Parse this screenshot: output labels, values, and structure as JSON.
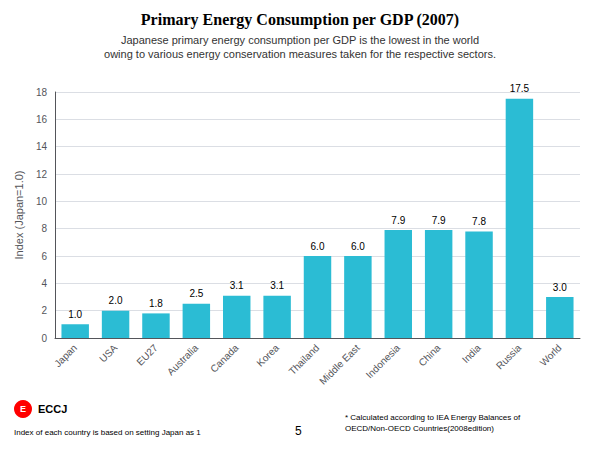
{
  "chart_data": {
    "type": "bar",
    "title": "Primary Energy Consumption per GDP (2007)",
    "subtitle": "Japanese primary energy consumption per GDP is the lowest in the world\nowing to various energy conservation measures taken for the respective sectors.",
    "ylabel": "Index (Japan=1.0)",
    "categories": [
      "Japan",
      "USA",
      "EU27",
      "Australia",
      "Canada",
      "Korea",
      "Thailand",
      "Middle East",
      "Indonesia",
      "China",
      "India",
      "Russia",
      "World"
    ],
    "values": [
      1.0,
      2.0,
      1.8,
      2.5,
      3.1,
      3.1,
      6.0,
      6.0,
      7.9,
      7.9,
      7.8,
      17.5,
      3.0
    ],
    "value_labels": [
      "1.0",
      "2.0",
      "1.8",
      "2.5",
      "3.1",
      "3.1",
      "6.0",
      "6.0",
      "7.9",
      "7.9",
      "7.8",
      "17.5",
      "3.0"
    ],
    "color": "#2bbcd4",
    "ylim": [
      0,
      18
    ],
    "yticks": [
      0,
      2,
      4,
      6,
      8,
      10,
      12,
      14,
      16,
      18
    ],
    "grid": true,
    "data_labels": true,
    "annotations": [
      "E",
      "ECCJ",
      "Index of each country is based on setting Japan as 1",
      "5",
      "* Calculated according to IEA Energy Balances of\nOECD/Non-OECD Countries(2008edition)"
    ]
  }
}
